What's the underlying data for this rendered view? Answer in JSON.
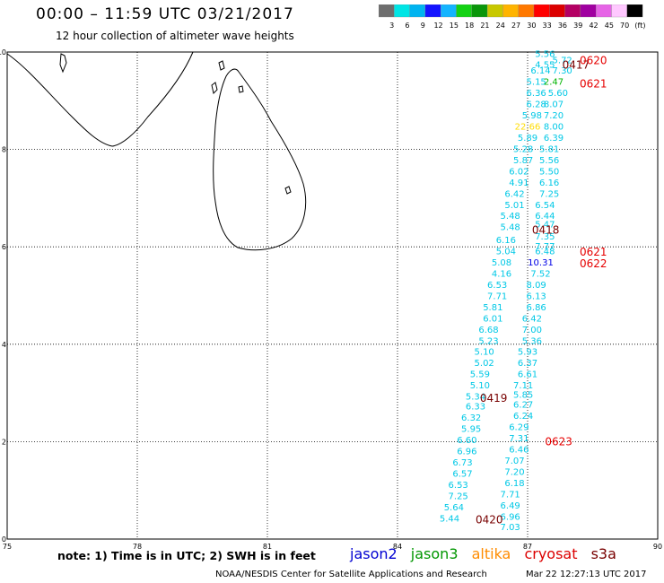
{
  "title": "00:00 – 11:59 UTC 03/21/2017",
  "subtitle": "12 hour collection of altimeter wave heights",
  "colorbar": {
    "colors": [
      "#6e6e6e",
      "#00e5e5",
      "#00b4f0",
      "#1414ff",
      "#14b4ff",
      "#14d214",
      "#0a960a",
      "#c8c800",
      "#ffb400",
      "#ff7800",
      "#ff0000",
      "#dc0000",
      "#b40064",
      "#a000a0",
      "#e664e6",
      "#ffc8ff",
      "#000000"
    ],
    "labels": [
      "3",
      "6",
      "9",
      "12",
      "15",
      "18",
      "21",
      "24",
      "27",
      "30",
      "33",
      "36",
      "39",
      "42",
      "45",
      "70",
      "(ft)"
    ]
  },
  "axes": {
    "x_ticks": [
      "75",
      "78",
      "81",
      "84",
      "87",
      "90"
    ],
    "y_ticks": [
      "0",
      "2",
      "4",
      "6",
      "8",
      "10"
    ]
  },
  "map_data": {
    "lon_range": [
      75,
      90
    ],
    "lat_range": [
      0,
      10
    ],
    "swh_labels": [
      {
        "t": "5.56",
        "lon": 87.4,
        "lat": 9.9,
        "c": "#00c8e6"
      },
      {
        "t": "4.55",
        "lon": 87.4,
        "lat": 9.68,
        "c": "#00c8e6"
      },
      {
        "t": "5.72",
        "lon": 87.8,
        "lat": 9.77,
        "c": "#00c8e6"
      },
      {
        "t": "6.14",
        "lon": 87.3,
        "lat": 9.56,
        "c": "#00c8e6"
      },
      {
        "t": "7.30",
        "lon": 87.8,
        "lat": 9.56,
        "c": "#00c8e6"
      },
      {
        "t": "5.15",
        "lon": 87.2,
        "lat": 9.33,
        "c": "#00c8e6"
      },
      {
        "t": "2.47",
        "lon": 87.6,
        "lat": 9.33,
        "c": "#00b400"
      },
      {
        "t": "6.36",
        "lon": 87.2,
        "lat": 9.1,
        "c": "#00c8e6"
      },
      {
        "t": "5.60",
        "lon": 87.7,
        "lat": 9.1,
        "c": "#00c8e6"
      },
      {
        "t": "6.28",
        "lon": 87.2,
        "lat": 8.87,
        "c": "#00c8e6"
      },
      {
        "t": "8.07",
        "lon": 87.6,
        "lat": 8.87,
        "c": "#00c8e6"
      },
      {
        "t": "5.98",
        "lon": 87.1,
        "lat": 8.64,
        "c": "#00c8e6"
      },
      {
        "t": "7.20",
        "lon": 87.6,
        "lat": 8.64,
        "c": "#00c8e6"
      },
      {
        "t": "22.66",
        "lon": 87.0,
        "lat": 8.41,
        "c": "#ffdc00"
      },
      {
        "t": "8.00",
        "lon": 87.6,
        "lat": 8.41,
        "c": "#00c8e6"
      },
      {
        "t": "5.89",
        "lon": 87.0,
        "lat": 8.18,
        "c": "#00c8e6"
      },
      {
        "t": "6.39",
        "lon": 87.6,
        "lat": 8.18,
        "c": "#00c8e6"
      },
      {
        "t": "5.28",
        "lon": 86.9,
        "lat": 7.95,
        "c": "#00c8e6"
      },
      {
        "t": "5.81",
        "lon": 87.5,
        "lat": 7.95,
        "c": "#00c8e6"
      },
      {
        "t": "5.87",
        "lon": 86.9,
        "lat": 7.72,
        "c": "#00c8e6"
      },
      {
        "t": "5.56",
        "lon": 87.5,
        "lat": 7.72,
        "c": "#00c8e6"
      },
      {
        "t": "6.02",
        "lon": 86.8,
        "lat": 7.49,
        "c": "#00c8e6"
      },
      {
        "t": "5.50",
        "lon": 87.5,
        "lat": 7.49,
        "c": "#00c8e6"
      },
      {
        "t": "4.91",
        "lon": 86.8,
        "lat": 7.26,
        "c": "#00c8e6"
      },
      {
        "t": "6.16",
        "lon": 87.5,
        "lat": 7.26,
        "c": "#00c8e6"
      },
      {
        "t": "6.42",
        "lon": 86.7,
        "lat": 7.03,
        "c": "#00c8e6"
      },
      {
        "t": "7.25",
        "lon": 87.5,
        "lat": 7.03,
        "c": "#00c8e6"
      },
      {
        "t": "5.01",
        "lon": 86.7,
        "lat": 6.8,
        "c": "#00c8e6"
      },
      {
        "t": "6.54",
        "lon": 87.4,
        "lat": 6.8,
        "c": "#00c8e6"
      },
      {
        "t": "5.48",
        "lon": 86.6,
        "lat": 6.57,
        "c": "#00c8e6"
      },
      {
        "t": "6.44",
        "lon": 87.4,
        "lat": 6.57,
        "c": "#00c8e6"
      },
      {
        "t": "5.48",
        "lon": 86.6,
        "lat": 6.34,
        "c": "#00c8e6"
      },
      {
        "t": "5.47",
        "lon": 87.4,
        "lat": 6.4,
        "c": "#00c8e6"
      },
      {
        "t": "6.16",
        "lon": 86.5,
        "lat": 6.08,
        "c": "#00c8e6"
      },
      {
        "t": "7.35",
        "lon": 87.4,
        "lat": 6.15,
        "c": "#00c8e6"
      },
      {
        "t": "5.04",
        "lon": 86.5,
        "lat": 5.85,
        "c": "#00c8e6"
      },
      {
        "t": "7.77",
        "lon": 87.4,
        "lat": 5.95,
        "c": "#00c8e6"
      },
      {
        "t": "6.48",
        "lon": 87.4,
        "lat": 5.85,
        "c": "#00c8e6"
      },
      {
        "t": "5.08",
        "lon": 86.4,
        "lat": 5.62,
        "c": "#00c8e6"
      },
      {
        "t": "10.31",
        "lon": 87.3,
        "lat": 5.62,
        "c": "#0000e6"
      },
      {
        "t": "4.16",
        "lon": 86.4,
        "lat": 5.39,
        "c": "#00c8e6"
      },
      {
        "t": "7.52",
        "lon": 87.3,
        "lat": 5.39,
        "c": "#00c8e6"
      },
      {
        "t": "6.53",
        "lon": 86.3,
        "lat": 5.16,
        "c": "#00c8e6"
      },
      {
        "t": "8.09",
        "lon": 87.2,
        "lat": 5.16,
        "c": "#00c8e6"
      },
      {
        "t": "7.71",
        "lon": 86.3,
        "lat": 4.93,
        "c": "#00c8e6"
      },
      {
        "t": "6.13",
        "lon": 87.2,
        "lat": 4.93,
        "c": "#00c8e6"
      },
      {
        "t": "5.81",
        "lon": 86.2,
        "lat": 4.7,
        "c": "#00c8e6"
      },
      {
        "t": "6.86",
        "lon": 87.2,
        "lat": 4.7,
        "c": "#00c8e6"
      },
      {
        "t": "6.01",
        "lon": 86.2,
        "lat": 4.47,
        "c": "#00c8e6"
      },
      {
        "t": "6.42",
        "lon": 87.1,
        "lat": 4.47,
        "c": "#00c8e6"
      },
      {
        "t": "6.68",
        "lon": 86.1,
        "lat": 4.24,
        "c": "#00c8e6"
      },
      {
        "t": "7.00",
        "lon": 87.1,
        "lat": 4.24,
        "c": "#00c8e6"
      },
      {
        "t": "5.23",
        "lon": 86.1,
        "lat": 4.01,
        "c": "#00c8e6"
      },
      {
        "t": "5.36",
        "lon": 87.1,
        "lat": 4.01,
        "c": "#00c8e6"
      },
      {
        "t": "5.10",
        "lon": 86.0,
        "lat": 3.78,
        "c": "#00c8e6"
      },
      {
        "t": "5.93",
        "lon": 87.0,
        "lat": 3.78,
        "c": "#00c8e6"
      },
      {
        "t": "5.02",
        "lon": 86.0,
        "lat": 3.55,
        "c": "#00c8e6"
      },
      {
        "t": "6.37",
        "lon": 87.0,
        "lat": 3.55,
        "c": "#00c8e6"
      },
      {
        "t": "5.59",
        "lon": 85.9,
        "lat": 3.32,
        "c": "#00c8e6"
      },
      {
        "t": "6.61",
        "lon": 87.0,
        "lat": 3.32,
        "c": "#00c8e6"
      },
      {
        "t": "5.10",
        "lon": 85.9,
        "lat": 3.09,
        "c": "#00c8e6"
      },
      {
        "t": "7.11",
        "lon": 86.9,
        "lat": 3.09,
        "c": "#00c8e6"
      },
      {
        "t": "5.34",
        "lon": 85.8,
        "lat": 2.86,
        "c": "#00c8e6"
      },
      {
        "t": "5.85",
        "lon": 86.9,
        "lat": 2.9,
        "c": "#00c8e6"
      },
      {
        "t": "6.33",
        "lon": 85.8,
        "lat": 2.66,
        "c": "#00c8e6"
      },
      {
        "t": "6.27",
        "lon": 86.9,
        "lat": 2.7,
        "c": "#00c8e6"
      },
      {
        "t": "6.32",
        "lon": 85.7,
        "lat": 2.43,
        "c": "#00c8e6"
      },
      {
        "t": "6.24",
        "lon": 86.9,
        "lat": 2.47,
        "c": "#00c8e6"
      },
      {
        "t": "5.95",
        "lon": 85.7,
        "lat": 2.2,
        "c": "#00c8e6"
      },
      {
        "t": "6.29",
        "lon": 86.8,
        "lat": 2.24,
        "c": "#00c8e6"
      },
      {
        "t": "6.60",
        "lon": 85.6,
        "lat": 1.97,
        "c": "#00c8e6"
      },
      {
        "t": "7.31",
        "lon": 86.8,
        "lat": 2.01,
        "c": "#00c8e6"
      },
      {
        "t": "6.96",
        "lon": 85.6,
        "lat": 1.74,
        "c": "#00c8e6"
      },
      {
        "t": "6.46",
        "lon": 86.8,
        "lat": 1.78,
        "c": "#00c8e6"
      },
      {
        "t": "6.73",
        "lon": 85.5,
        "lat": 1.51,
        "c": "#00c8e6"
      },
      {
        "t": "7.07",
        "lon": 86.7,
        "lat": 1.55,
        "c": "#00c8e6"
      },
      {
        "t": "6.57",
        "lon": 85.5,
        "lat": 1.28,
        "c": "#00c8e6"
      },
      {
        "t": "7.20",
        "lon": 86.7,
        "lat": 1.32,
        "c": "#00c8e6"
      },
      {
        "t": "6.53",
        "lon": 85.4,
        "lat": 1.05,
        "c": "#00c8e6"
      },
      {
        "t": "6.18",
        "lon": 86.7,
        "lat": 1.09,
        "c": "#00c8e6"
      },
      {
        "t": "7.25",
        "lon": 85.4,
        "lat": 0.82,
        "c": "#00c8e6"
      },
      {
        "t": "7.71",
        "lon": 86.6,
        "lat": 0.86,
        "c": "#00c8e6"
      },
      {
        "t": "5.64",
        "lon": 85.3,
        "lat": 0.59,
        "c": "#00c8e6"
      },
      {
        "t": "6.49",
        "lon": 86.6,
        "lat": 0.63,
        "c": "#00c8e6"
      },
      {
        "t": "5.44",
        "lon": 85.2,
        "lat": 0.36,
        "c": "#00c8e6"
      },
      {
        "t": "6.96",
        "lon": 86.6,
        "lat": 0.4,
        "c": "#00c8e6"
      },
      {
        "t": "7.03",
        "lon": 86.6,
        "lat": 0.18,
        "c": "#00c8e6"
      }
    ],
    "time_labels": [
      {
        "t": "0417",
        "lon": 87.8,
        "lat": 9.66,
        "c": "#780000"
      },
      {
        "t": "0620",
        "lon": 88.2,
        "lat": 9.75,
        "c": "#e60000"
      },
      {
        "t": "0621",
        "lon": 88.2,
        "lat": 9.27,
        "c": "#e60000"
      },
      {
        "t": "0418",
        "lon": 87.1,
        "lat": 6.27,
        "c": "#780000"
      },
      {
        "t": "0621",
        "lon": 88.2,
        "lat": 5.82,
        "c": "#e60000"
      },
      {
        "t": "0622",
        "lon": 88.2,
        "lat": 5.58,
        "c": "#e60000"
      },
      {
        "t": "0419",
        "lon": 85.9,
        "lat": 2.82,
        "c": "#780000"
      },
      {
        "t": "0623",
        "lon": 87.4,
        "lat": 1.92,
        "c": "#e60000"
      },
      {
        "t": "0420",
        "lon": 85.8,
        "lat": 0.32,
        "c": "#780000"
      }
    ]
  },
  "note": "note: 1) Time is in UTC; 2) SWH is in feet",
  "legend": [
    {
      "name": "jason2",
      "color": "#0000d2"
    },
    {
      "name": "jason3",
      "color": "#009600"
    },
    {
      "name": "altika",
      "color": "#ff8c00"
    },
    {
      "name": "cryosat",
      "color": "#dc0000"
    },
    {
      "name": "s3a",
      "color": "#780000"
    }
  ],
  "credit": "NOAA/NESDIS Center for Satellite Applications and Research",
  "timestamp": "Mar 22 12:27:13 UTC 2017"
}
